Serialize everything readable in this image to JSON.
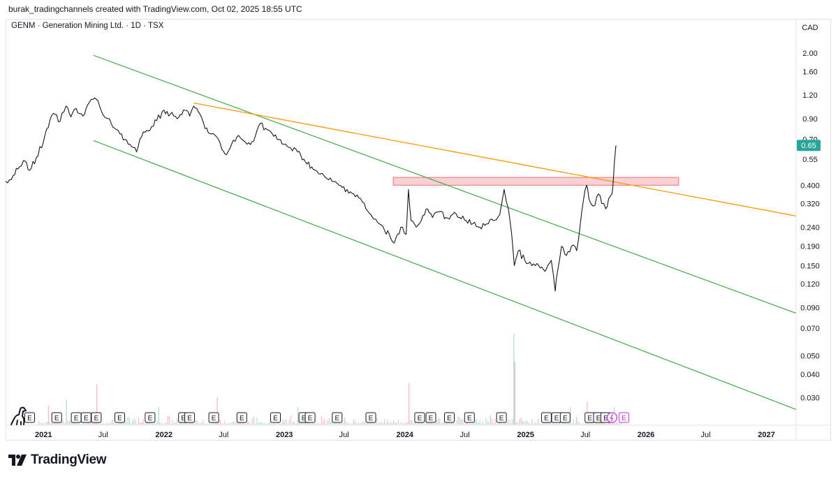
{
  "header": {
    "attribution": "burak_tradingchannels created with TradingView.com, Oct 02, 2025 18:55 UTC"
  },
  "legend": {
    "title": "GENM · Generation Mining Ltd. · 1D · TSX"
  },
  "currency": "CAD",
  "brand": {
    "name": "TradingView"
  },
  "colors": {
    "price": "#131722",
    "channel": "#4caf50",
    "trendline": "#ff9800",
    "zone_fill": "#f8c9cd",
    "zone_border": "#e57373",
    "last_price": "#26a69a",
    "vol_up": "#b2dfdb",
    "vol_down": "#f8bbbf",
    "dividend": "#c32ee4"
  },
  "chart_data": {
    "type": "line",
    "title": "GENM · Generation Mining Ltd. · 1D · TSX",
    "yscale": "log",
    "ylim": [
      0.022,
      2.5
    ],
    "xlim": [
      "2020-09-08",
      "2027-04-01"
    ],
    "y_ticks": [
      "2.00",
      "1.60",
      "1.20",
      "0.90",
      "0.70",
      "0.55",
      "0.400",
      "0.320",
      "0.240",
      "0.190",
      "0.150",
      "0.120",
      "0.090",
      "0.070",
      "0.050",
      "0.040",
      "0.030"
    ],
    "x_ticks": [
      {
        "label": "2021",
        "date": "2021-01-01",
        "major": true
      },
      {
        "label": "Jul",
        "date": "2021-07-01",
        "major": false
      },
      {
        "label": "2022",
        "date": "2022-01-01",
        "major": true
      },
      {
        "label": "Jul",
        "date": "2022-07-01",
        "major": false
      },
      {
        "label": "2023",
        "date": "2023-01-01",
        "major": true
      },
      {
        "label": "Jul",
        "date": "2023-07-01",
        "major": false
      },
      {
        "label": "2024",
        "date": "2024-01-01",
        "major": true
      },
      {
        "label": "Jul",
        "date": "2024-07-01",
        "major": false
      },
      {
        "label": "2025",
        "date": "2025-01-01",
        "major": true
      },
      {
        "label": "Jul",
        "date": "2025-07-01",
        "major": false
      },
      {
        "label": "2026",
        "date": "2026-01-01",
        "major": true
      },
      {
        "label": "Jul",
        "date": "2026-07-01",
        "major": false
      },
      {
        "label": "2027",
        "date": "2027-01-01",
        "major": true
      }
    ],
    "last_price": {
      "label": "0.65",
      "value": 0.65
    },
    "series": [
      {
        "name": "GENM",
        "points": [
          [
            "2020-09-08",
            0.42
          ],
          [
            "2020-10-01",
            0.45
          ],
          [
            "2020-10-20",
            0.5
          ],
          [
            "2020-11-01",
            0.54
          ],
          [
            "2020-11-20",
            0.48
          ],
          [
            "2020-12-10",
            0.56
          ],
          [
            "2021-01-01",
            0.68
          ],
          [
            "2021-01-20",
            0.88
          ],
          [
            "2021-02-05",
            0.95
          ],
          [
            "2021-02-20",
            0.87
          ],
          [
            "2021-03-10",
            1.05
          ],
          [
            "2021-03-25",
            0.92
          ],
          [
            "2021-04-10",
            1.02
          ],
          [
            "2021-05-01",
            0.93
          ],
          [
            "2021-05-20",
            1.1
          ],
          [
            "2021-06-05",
            1.16
          ],
          [
            "2021-06-20",
            1.05
          ],
          [
            "2021-07-05",
            0.92
          ],
          [
            "2021-07-25",
            0.85
          ],
          [
            "2021-08-15",
            0.78
          ],
          [
            "2021-09-05",
            0.7
          ],
          [
            "2021-09-25",
            0.64
          ],
          [
            "2021-10-10",
            0.6
          ],
          [
            "2021-10-25",
            0.72
          ],
          [
            "2021-11-10",
            0.78
          ],
          [
            "2021-11-25",
            0.82
          ],
          [
            "2021-12-10",
            0.88
          ],
          [
            "2022-01-01",
            1.0
          ],
          [
            "2022-01-20",
            0.95
          ],
          [
            "2022-02-10",
            0.9
          ],
          [
            "2022-03-01",
            1.0
          ],
          [
            "2022-03-20",
            0.93
          ],
          [
            "2022-04-01",
            1.05
          ],
          [
            "2022-04-15",
            0.98
          ],
          [
            "2022-05-01",
            0.85
          ],
          [
            "2022-05-20",
            0.75
          ],
          [
            "2022-06-10",
            0.72
          ],
          [
            "2022-06-25",
            0.62
          ],
          [
            "2022-07-10",
            0.58
          ],
          [
            "2022-07-25",
            0.66
          ],
          [
            "2022-08-10",
            0.72
          ],
          [
            "2022-08-25",
            0.7
          ],
          [
            "2022-09-10",
            0.66
          ],
          [
            "2022-09-25",
            0.68
          ],
          [
            "2022-10-10",
            0.78
          ],
          [
            "2022-10-20",
            0.85
          ],
          [
            "2022-11-05",
            0.8
          ],
          [
            "2022-11-25",
            0.75
          ],
          [
            "2022-12-10",
            0.7
          ],
          [
            "2022-12-30",
            0.66
          ],
          [
            "2023-01-20",
            0.63
          ],
          [
            "2023-02-10",
            0.6
          ],
          [
            "2023-03-01",
            0.55
          ],
          [
            "2023-03-25",
            0.5
          ],
          [
            "2023-04-15",
            0.46
          ],
          [
            "2023-05-05",
            0.44
          ],
          [
            "2023-05-25",
            0.42
          ],
          [
            "2023-06-15",
            0.4
          ],
          [
            "2023-07-10",
            0.38
          ],
          [
            "2023-07-30",
            0.36
          ],
          [
            "2023-08-20",
            0.34
          ],
          [
            "2023-09-05",
            0.3
          ],
          [
            "2023-09-25",
            0.27
          ],
          [
            "2023-10-15",
            0.25
          ],
          [
            "2023-11-01",
            0.23
          ],
          [
            "2023-11-15",
            0.22
          ],
          [
            "2023-11-25",
            0.2
          ],
          [
            "2023-12-05",
            0.21
          ],
          [
            "2023-12-20",
            0.24
          ],
          [
            "2024-01-05",
            0.22
          ],
          [
            "2024-01-12",
            0.38
          ],
          [
            "2024-01-20",
            0.26
          ],
          [
            "2024-02-05",
            0.24
          ],
          [
            "2024-02-20",
            0.26
          ],
          [
            "2024-03-10",
            0.3
          ],
          [
            "2024-03-25",
            0.27
          ],
          [
            "2024-04-15",
            0.29
          ],
          [
            "2024-05-05",
            0.27
          ],
          [
            "2024-05-25",
            0.28
          ],
          [
            "2024-06-15",
            0.27
          ],
          [
            "2024-07-05",
            0.26
          ],
          [
            "2024-07-25",
            0.25
          ],
          [
            "2024-08-15",
            0.24
          ],
          [
            "2024-09-05",
            0.25
          ],
          [
            "2024-09-25",
            0.26
          ],
          [
            "2024-10-15",
            0.28
          ],
          [
            "2024-10-28",
            0.38
          ],
          [
            "2024-11-10",
            0.3
          ],
          [
            "2024-11-20",
            0.22
          ],
          [
            "2024-11-28",
            0.15
          ],
          [
            "2024-12-10",
            0.18
          ],
          [
            "2024-12-30",
            0.16
          ],
          [
            "2025-01-20",
            0.15
          ],
          [
            "2025-02-10",
            0.15
          ],
          [
            "2025-03-01",
            0.14
          ],
          [
            "2025-03-20",
            0.16
          ],
          [
            "2025-04-01",
            0.11
          ],
          [
            "2025-04-08",
            0.14
          ],
          [
            "2025-04-20",
            0.19
          ],
          [
            "2025-05-05",
            0.17
          ],
          [
            "2025-05-20",
            0.19
          ],
          [
            "2025-06-05",
            0.18
          ],
          [
            "2025-06-15",
            0.24
          ],
          [
            "2025-06-25",
            0.33
          ],
          [
            "2025-07-05",
            0.4
          ],
          [
            "2025-07-12",
            0.34
          ],
          [
            "2025-07-25",
            0.31
          ],
          [
            "2025-08-10",
            0.36
          ],
          [
            "2025-08-20",
            0.32
          ],
          [
            "2025-09-01",
            0.3
          ],
          [
            "2025-09-10",
            0.34
          ],
          [
            "2025-09-20",
            0.36
          ],
          [
            "2025-09-25",
            0.45
          ],
          [
            "2025-09-28",
            0.55
          ],
          [
            "2025-10-02",
            0.65
          ]
        ]
      },
      {
        "name": "channel upper",
        "points": [
          [
            "2021-06-01",
            1.95
          ],
          [
            "2027-04-01",
            0.084
          ]
        ]
      },
      {
        "name": "channel lower",
        "points": [
          [
            "2021-06-01",
            0.69
          ],
          [
            "2027-04-01",
            0.026
          ]
        ]
      },
      {
        "name": "trendline",
        "points": [
          [
            "2022-04-01",
            1.09
          ],
          [
            "2027-04-01",
            0.275
          ]
        ]
      }
    ],
    "zones": [
      {
        "from": "2023-11-27",
        "to": "2026-04-10",
        "low": 0.4,
        "high": 0.44
      }
    ],
    "events": {
      "earnings": [
        "2020-11-20",
        "2021-02-10",
        "2021-04-10",
        "2021-05-10",
        "2021-06-10",
        "2021-08-20",
        "2021-11-20",
        "2022-03-01",
        "2022-03-20",
        "2022-06-01",
        "2022-08-25",
        "2022-12-05",
        "2023-03-01",
        "2023-03-20",
        "2023-06-10",
        "2023-09-20",
        "2024-02-15",
        "2024-03-20",
        "2024-05-15",
        "2024-07-15",
        "2024-10-20",
        "2025-03-05",
        "2025-04-05",
        "2025-05-01",
        "2025-07-15",
        "2025-08-10",
        "2025-09-01"
      ],
      "earnings_label": "E",
      "dividend": [
        "2025-09-20"
      ]
    },
    "volume": {
      "spikes": [
        [
          "2021-01-15",
          0.15
        ],
        [
          "2021-03-10",
          0.2
        ],
        [
          "2021-06-10",
          0.32
        ],
        [
          "2021-12-15",
          0.14
        ],
        [
          "2022-06-10",
          0.22
        ],
        [
          "2023-02-10",
          0.14
        ],
        [
          "2024-01-12",
          0.33
        ],
        [
          "2024-11-25",
          0.72
        ],
        [
          "2024-11-28",
          0.5
        ],
        [
          "2025-05-15",
          0.14
        ],
        [
          "2025-07-05",
          0.18
        ],
        [
          "2025-09-25",
          0.14
        ]
      ]
    }
  }
}
